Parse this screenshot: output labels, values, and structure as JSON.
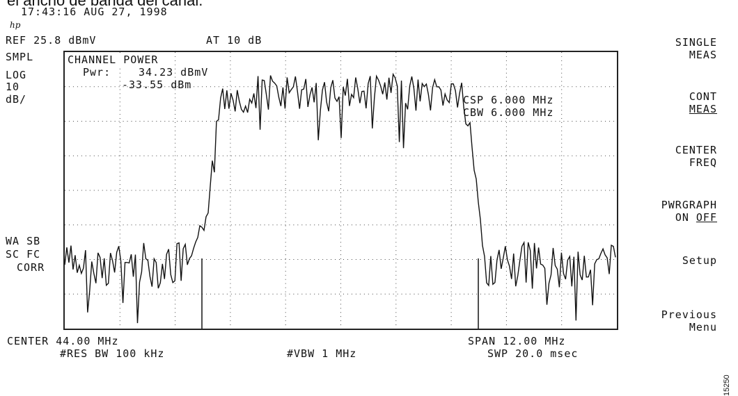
{
  "caption": "el ancho de banda del canal.",
  "header": {
    "datetime": "17:43:16 AUG 27, 1998",
    "logo_glyph": "hp",
    "ref": "REF 25.8 dBmV",
    "atten": "AT 10 dB"
  },
  "left_labels": {
    "smpl": "SMPL",
    "log": "LOG",
    "scale_num": "10",
    "scale_unit": "dB/",
    "wa_sb": "WA SB",
    "sc_fc": "SC FC",
    "corr": "CORR"
  },
  "measurement": {
    "mode": "CHANNEL POWER",
    "pwr_label": "Pwr:",
    "pwr_dbmv": "34.23 dBmV",
    "pwr_dbm": "-33.55 dBm",
    "csp": "CSP 6.000 MHz",
    "cbw": "CBW 6.000 MHz"
  },
  "softkeys": [
    {
      "line1": "SINGLE",
      "line2": "MEAS",
      "underline2": false
    },
    {
      "line1": "CONT",
      "line2": "MEAS",
      "underline2": true
    },
    {
      "line1": "CENTER",
      "line2": "FREQ",
      "underline2": false
    },
    {
      "line1": "PWRGRAPH",
      "line2a": "ON",
      "line2b": "OFF",
      "underline2": true
    },
    {
      "line1": "Setup"
    },
    {
      "line1": "Previous",
      "line2": "Menu"
    }
  ],
  "footer": {
    "center": "CENTER 44.00 MHz",
    "span": "SPAN 12.00 MHz",
    "res_bw": "#RES BW 100 kHz",
    "vbw": "#VBW 1 MHz",
    "swp": "SWP 20.0 msec"
  },
  "side_id": "15250"
}
